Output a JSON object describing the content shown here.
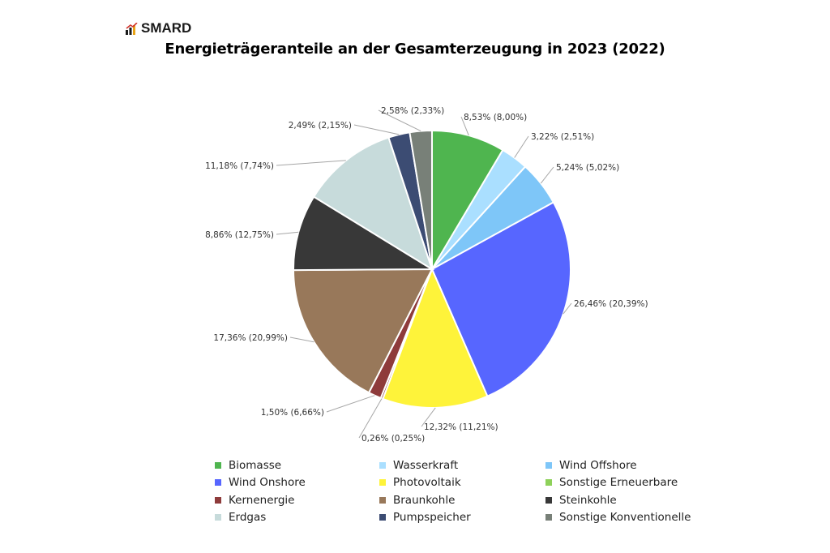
{
  "logo": {
    "text": "SMARD"
  },
  "chart_data": {
    "type": "pie",
    "title": "Energieträgeranteile an der Gesamterzeugung in 2023 (2022)",
    "legend_position": "bottom",
    "slices": [
      {
        "name": "Biomasse",
        "value": 8.53,
        "value_prev": 8.0,
        "label": "8,53% (8,00%)",
        "color": "#4fb54f"
      },
      {
        "name": "Wasserkraft",
        "value": 3.22,
        "value_prev": 2.51,
        "label": "3,22% (2,51%)",
        "color": "#aadfff"
      },
      {
        "name": "Wind Offshore",
        "value": 5.24,
        "value_prev": 5.02,
        "label": "5,24% (5,02%)",
        "color": "#7ec6f8"
      },
      {
        "name": "Wind Onshore",
        "value": 26.46,
        "value_prev": 20.39,
        "label": "26,46% (20,39%)",
        "color": "#5766ff"
      },
      {
        "name": "Sonstige Erneuerbare",
        "value": 0,
        "value_prev": null,
        "label": "",
        "color": "#8ed15a"
      },
      {
        "name": "Photovoltaik",
        "value": 12.32,
        "value_prev": 11.21,
        "label": "12,32% (11,21%)",
        "color": "#fef33a"
      },
      {
        "name": "Kernenergie",
        "value": 0.26,
        "value_prev": 0.25,
        "label": "0,26% (0,25%)",
        "color": "#8e3b3b"
      },
      {
        "name": "Kernenergie",
        "value": 1.5,
        "value_prev": 6.66,
        "label": "1,50% (6,66%)",
        "color": "#8e3b3b"
      },
      {
        "name": "Braunkohle",
        "value": 17.36,
        "value_prev": 20.99,
        "label": "17,36% (20,99%)",
        "color": "#98785a"
      },
      {
        "name": "Steinkohle",
        "value": 8.86,
        "value_prev": 12.75,
        "label": "8,86% (12,75%)",
        "color": "#383838"
      },
      {
        "name": "Erdgas",
        "value": 11.18,
        "value_prev": 7.74,
        "label": "11,18% (7,74%)",
        "color": "#c7dbdb"
      },
      {
        "name": "Pumpspeicher",
        "value": 2.49,
        "value_prev": 2.15,
        "label": "2,49% (2,15%)",
        "color": "#3c4c73"
      },
      {
        "name": "Sonstige Konventionelle",
        "value": 2.58,
        "value_prev": 2.33,
        "label": "2,58% (2,33%)",
        "color": "#788078"
      }
    ],
    "legend": [
      {
        "label": "Biomasse",
        "color": "#4fb54f"
      },
      {
        "label": "Wasserkraft",
        "color": "#aadfff"
      },
      {
        "label": "Wind Offshore",
        "color": "#7ec6f8"
      },
      {
        "label": "Wind Onshore",
        "color": "#5766ff"
      },
      {
        "label": "Photovoltaik",
        "color": "#fef33a"
      },
      {
        "label": "Sonstige Erneuerbare",
        "color": "#8ed15a"
      },
      {
        "label": "Kernenergie",
        "color": "#8e3b3b"
      },
      {
        "label": "Braunkohle",
        "color": "#98785a"
      },
      {
        "label": "Steinkohle",
        "color": "#383838"
      },
      {
        "label": "Erdgas",
        "color": "#c7dbdb"
      },
      {
        "label": "Pumpspeicher",
        "color": "#3c4c73"
      },
      {
        "label": "Sonstige Konventionelle",
        "color": "#788078"
      }
    ]
  }
}
